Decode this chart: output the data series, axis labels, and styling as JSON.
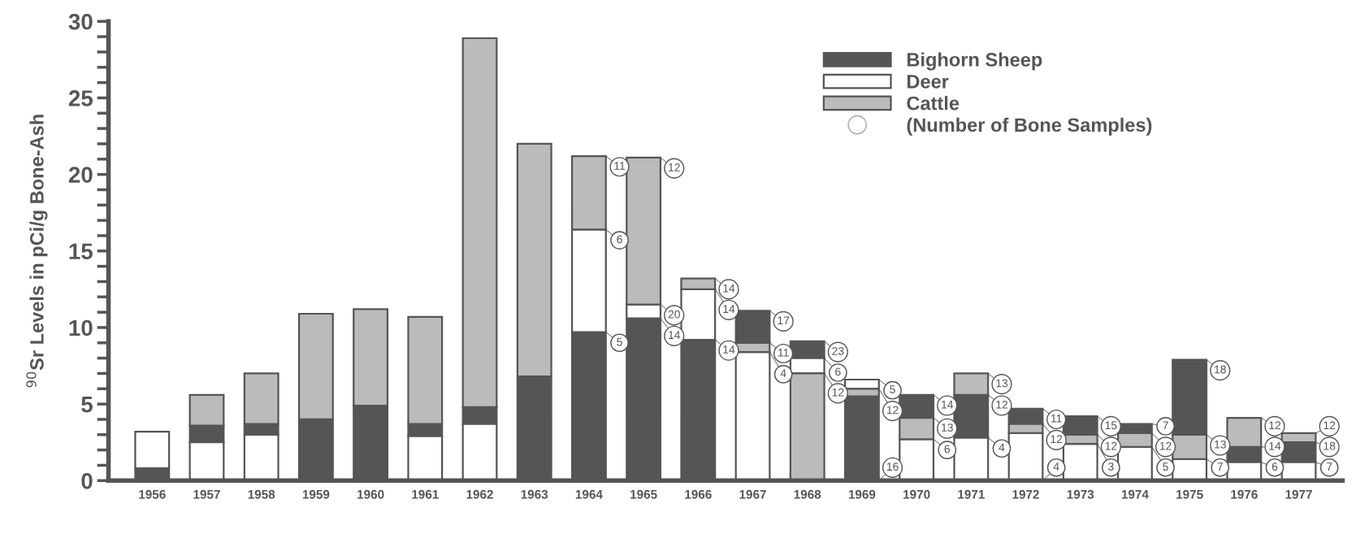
{
  "chart_data": {
    "type": "bar",
    "ylabel": "$^{90}$Sr Levels in pCi/g Bone-Ash",
    "categories": [
      "1956",
      "1957",
      "1958",
      "1959",
      "1960",
      "1961",
      "1962",
      "1963",
      "1964",
      "1965",
      "1966",
      "1967",
      "1968",
      "1969",
      "1970",
      "1971",
      "1972",
      "1973",
      "1974",
      "1975",
      "1976",
      "1977"
    ],
    "series": [
      {
        "name": "Bighorn Sheep",
        "color": "#555555",
        "values": [
          0.8,
          1.1,
          0.7,
          4.0,
          4.9,
          0.8,
          1.1,
          6.8,
          9.7,
          10.6,
          9.2,
          2.1,
          1.1,
          5.5,
          1.5,
          2.8,
          1.0,
          1.2,
          0.6,
          4.9,
          1.0,
          1.3
        ],
        "base": [
          0,
          2.5,
          3.0,
          0,
          0,
          2.9,
          3.7,
          0,
          0,
          0,
          0,
          9.0,
          8.0,
          0,
          4.1,
          2.8,
          3.7,
          3.0,
          3.1,
          3.0,
          1.2,
          1.2
        ]
      },
      {
        "name": "Deer",
        "color": "#ffffff",
        "values": [
          2.4,
          2.5,
          3.0,
          null,
          null,
          2.9,
          3.7,
          null,
          6.7,
          0.9,
          3.3,
          8.4,
          1.0,
          0.6,
          2.7,
          2.8,
          3.1,
          2.4,
          2.2,
          1.4,
          1.2,
          1.2
        ],
        "base": [
          0.8,
          0,
          0,
          null,
          null,
          0,
          0,
          null,
          9.7,
          10.6,
          9.2,
          0,
          7.0,
          6.0,
          0,
          0,
          0,
          0,
          0,
          0,
          0,
          0
        ]
      },
      {
        "name": "Cattle",
        "color": "#bbbbbb",
        "values": [
          null,
          2.0,
          3.3,
          6.9,
          6.3,
          7.0,
          24.1,
          15.2,
          4.8,
          9.6,
          0.7,
          0.6,
          7.0,
          0.5,
          1.4,
          1.4,
          0.6,
          0.6,
          0.9,
          1.6,
          1.9,
          0.6
        ],
        "base": [
          null,
          3.6,
          3.7,
          4.0,
          4.9,
          3.7,
          4.8,
          6.8,
          16.4,
          11.5,
          12.5,
          8.4,
          0,
          5.5,
          2.7,
          5.6,
          3.1,
          2.4,
          2.2,
          1.4,
          2.2,
          2.5
        ]
      }
    ],
    "ylim": [
      0,
      30
    ],
    "yticks": [
      0,
      {
        "value": 1,
        "label": null
      },
      {
        "value": 2,
        "label": null
      },
      {
        "value": 3,
        "label": null
      },
      {
        "value": 4,
        "label": null
      },
      5,
      {
        "value": 6,
        "label": null
      },
      {
        "value": 7,
        "label": null
      },
      {
        "value": 8,
        "label": null
      },
      {
        "value": 9,
        "label": null
      },
      10,
      {
        "value": 11,
        "label": null
      },
      {
        "value": 12,
        "label": null
      },
      {
        "value": 13,
        "label": null
      },
      {
        "value": 14,
        "label": null
      },
      15,
      {
        "value": 16,
        "label": null
      },
      {
        "value": 17,
        "label": null
      },
      {
        "value": 18,
        "label": null
      },
      {
        "value": 19,
        "label": null
      },
      20,
      {
        "value": 21,
        "label": null
      },
      {
        "value": 22,
        "label": null
      },
      {
        "value": 23,
        "label": null
      },
      {
        "value": 24,
        "label": null
      },
      25,
      {
        "value": 26,
        "label": null
      },
      {
        "value": 27,
        "label": null
      },
      {
        "value": 28,
        "label": null
      },
      {
        "value": 29,
        "label": null
      },
      30
    ],
    "legend": "top right",
    "annotations": [
      "(Number of Bone Samples)",
      {
        "text": "11",
        "x": "1964",
        "y": 21.2
      },
      {
        "text": "6",
        "x": "1964",
        "y": 16.4
      },
      {
        "text": "5",
        "x": "1964",
        "y": 9.7
      },
      {
        "text": "12",
        "x": "1965",
        "y": 21.1
      },
      {
        "text": "20",
        "x": "1965",
        "y": 11.5
      },
      {
        "text": "14",
        "x": "1965",
        "y": 10.6
      },
      {
        "text": "14",
        "x": "1966",
        "y": 13.2
      },
      {
        "text": "14",
        "x": "1966",
        "y": 12.5
      },
      {
        "text": "14",
        "x": "1966",
        "y": 9.2
      },
      {
        "text": "17",
        "x": "1967",
        "y": 11.1
      },
      {
        "text": "11",
        "x": "1967",
        "y": 9.0
      },
      {
        "text": "4",
        "x": "1967",
        "y": 8.4
      },
      {
        "text": "23",
        "x": "1968",
        "y": 9.1
      },
      {
        "text": "6",
        "x": "1968",
        "y": 8.0
      },
      {
        "text": "12",
        "x": "1968",
        "y": 7.0
      },
      {
        "text": "5",
        "x": "1969",
        "y": 6.6
      },
      {
        "text": "12",
        "x": "1969",
        "y": 6.0
      },
      {
        "text": "16",
        "x": "1969",
        "y": 0
      },
      {
        "text": "14",
        "x": "1970",
        "y": 5.6
      },
      {
        "text": "13",
        "x": "1970",
        "y": 4.1
      },
      {
        "text": "6",
        "x": "1970",
        "y": 2.7
      },
      {
        "text": "13",
        "x": "1971",
        "y": 7.0
      },
      {
        "text": "12",
        "x": "1971",
        "y": 5.6
      },
      {
        "text": "4",
        "x": "1971",
        "y": 2.8
      },
      {
        "text": "11",
        "x": "1972",
        "y": 4.7
      },
      {
        "text": "12",
        "x": "1972",
        "y": 3.7
      },
      {
        "text": "4",
        "x": "1972",
        "y": 0
      },
      {
        "text": "15",
        "x": "1973",
        "y": 4.2
      },
      {
        "text": "12",
        "x": "1973",
        "y": 3.0
      },
      {
        "text": "3",
        "x": "1973",
        "y": 2.4
      },
      {
        "text": "7",
        "x": "1974",
        "y": 3.7
      },
      {
        "text": "12",
        "x": "1974",
        "y": 3.1
      },
      {
        "text": "5",
        "x": "1974",
        "y": 2.2
      },
      {
        "text": "18",
        "x": "1975",
        "y": 7.9
      },
      {
        "text": "13",
        "x": "1975",
        "y": 3.0
      },
      {
        "text": "7",
        "x": "1975",
        "y": 1.4
      },
      {
        "text": "12",
        "x": "1976",
        "y": 4.1
      },
      {
        "text": "14",
        "x": "1976",
        "y": 2.2
      },
      {
        "text": "6",
        "x": "1976",
        "y": 1.2
      },
      {
        "text": "12",
        "x": "1977",
        "y": 3.1
      },
      {
        "text": "18",
        "x": "1977",
        "y": 2.5
      },
      {
        "text": "7",
        "x": "1977",
        "y": 1.2
      }
    ]
  }
}
